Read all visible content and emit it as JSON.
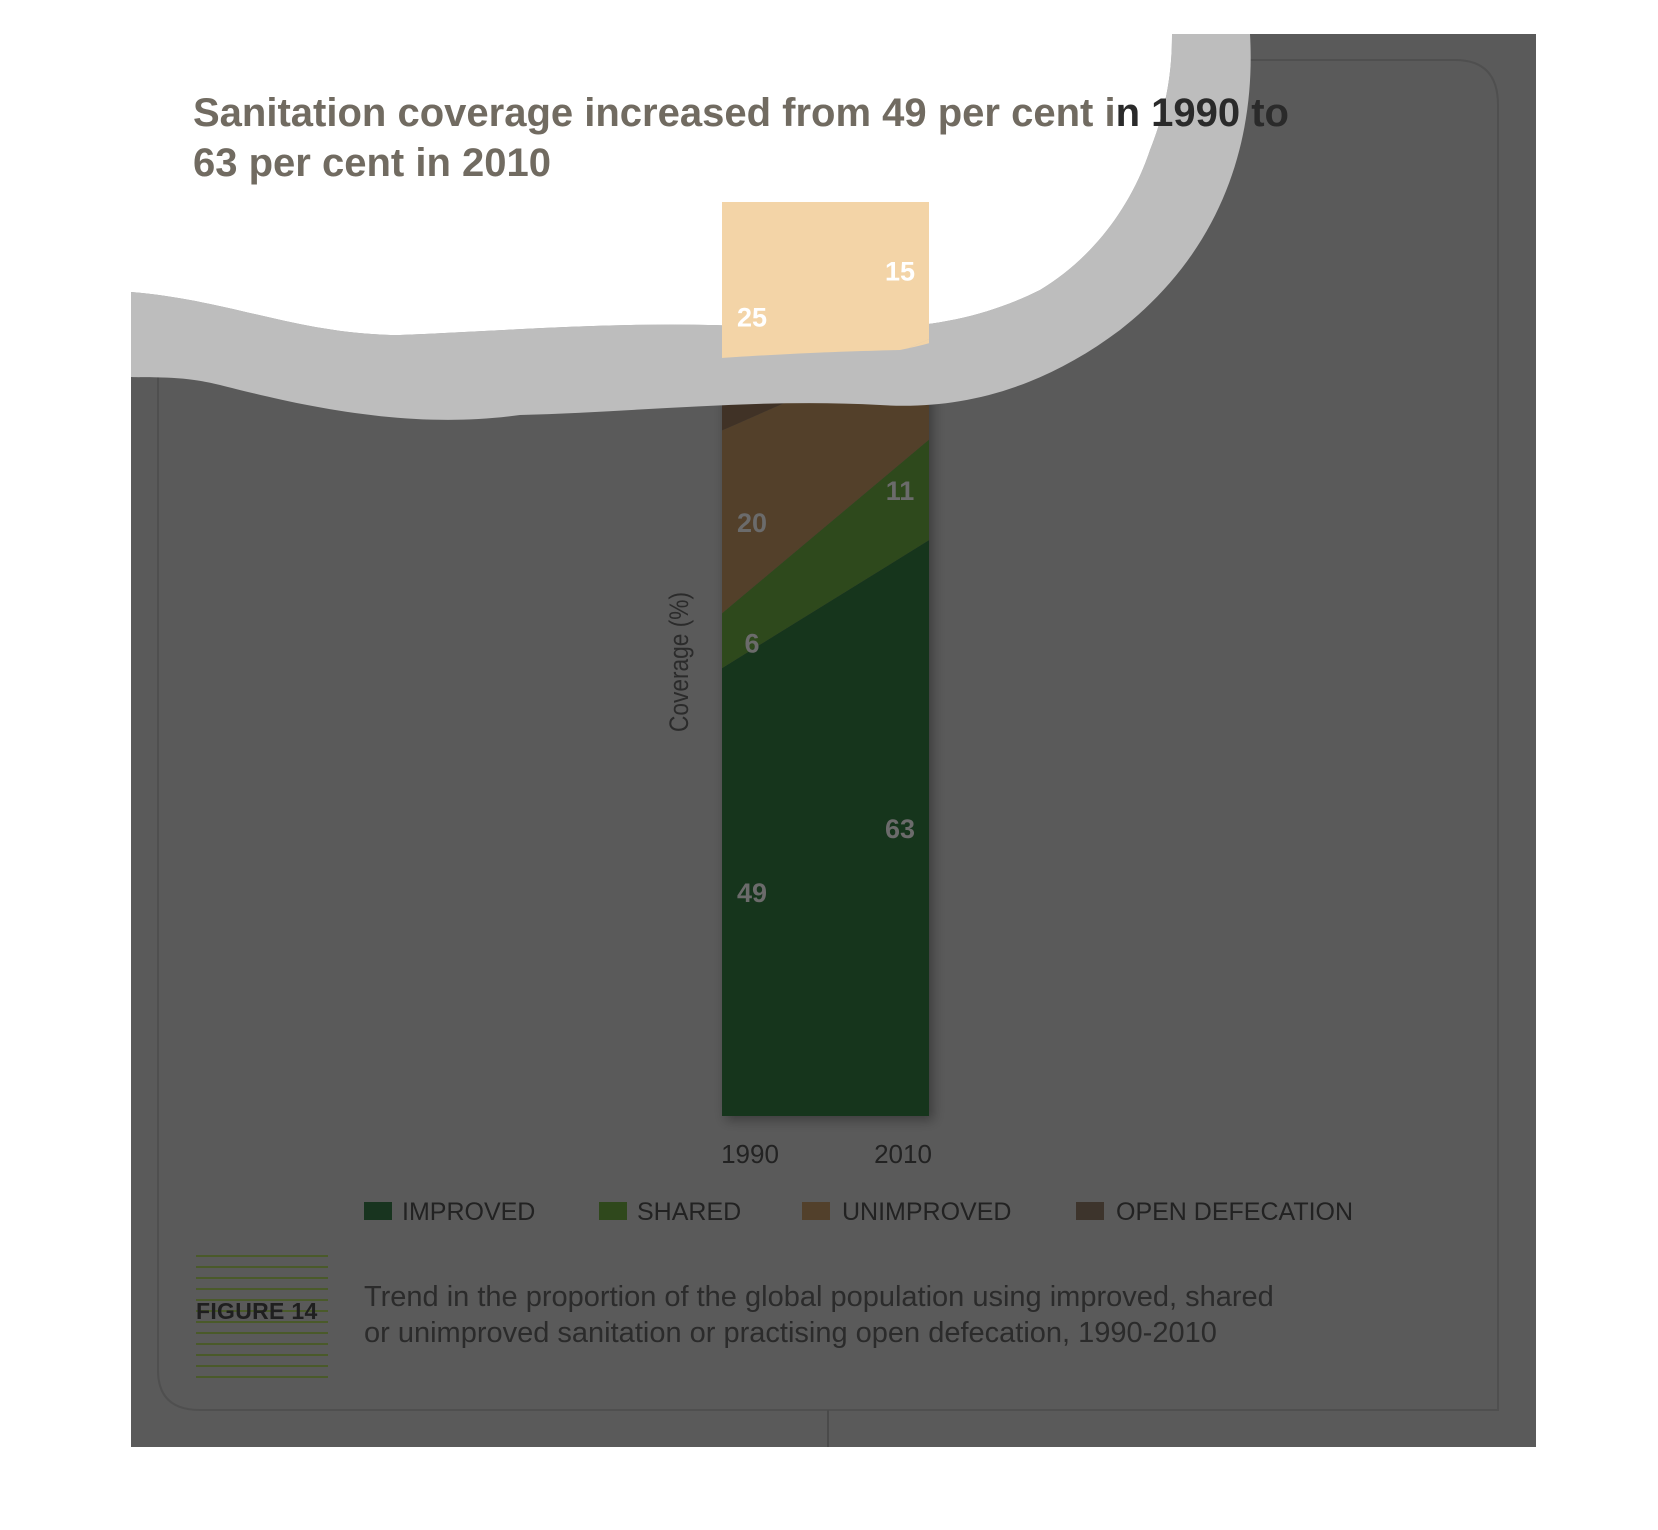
{
  "title_part1": "Sanitation coverage increased from 49 per cent i",
  "title_part2": "n 1990 to",
  "title_line2": "63 per cent in 2010",
  "figure_label": "FIGURE 14",
  "caption_line1": "Trend in the proportion of the global population using improved, shared",
  "caption_line2": "or unimproved sanitation or practising open defecation, 1990-2010",
  "colors": {
    "page_background": "#5a5a5a",
    "improved": "#18341f",
    "shared": "#2f481c",
    "unimproved": "#52402b",
    "open_defecation": "#3f3328",
    "open_defecation_legend": "#3d342c",
    "peeled_highlight": "#f3d4a7",
    "figure_rule": "#4a5a2a"
  },
  "chart_data": {
    "type": "area",
    "x": [
      "1990",
      "2010"
    ],
    "ylabel": "Coverage (%)",
    "ylim": [
      0,
      100
    ],
    "stacking": "stacked to 100%",
    "series": [
      {
        "name": "IMPROVED",
        "values": [
          49,
          63
        ],
        "color": "#18341f"
      },
      {
        "name": "SHARED",
        "values": [
          6,
          11
        ],
        "color": "#2f481c"
      },
      {
        "name": "UNIMPROVED",
        "values": [
          20,
          11
        ],
        "color": "#52402b"
      },
      {
        "name": "OPEN DEFECATION",
        "values": [
          25,
          15
        ],
        "color": "#3f3328"
      }
    ],
    "legend_position": "bottom",
    "grid": false
  }
}
